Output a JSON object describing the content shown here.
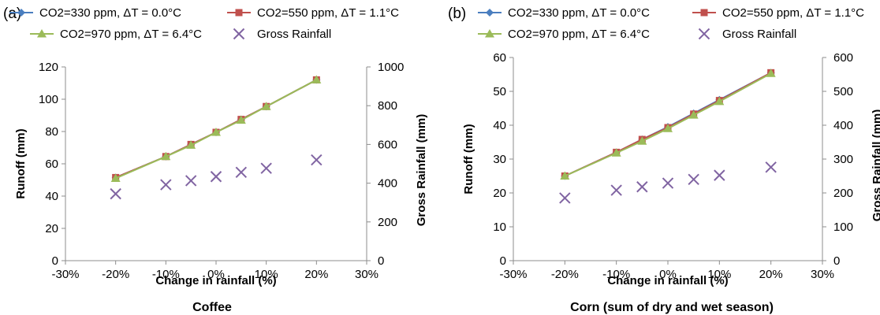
{
  "chart_data": [
    {
      "type": "line",
      "panel_label": "(a)",
      "caption": "Coffee",
      "xlabel": "Change in rainfall (%)",
      "ylabel": "Runoff (mm)",
      "y2label": "Gross Rainfall (mm)",
      "xlim": [
        -30,
        30
      ],
      "ylim": [
        0,
        120
      ],
      "y2lim": [
        0,
        1000
      ],
      "xticks": [
        "-30%",
        "-20%",
        "-10%",
        "0%",
        "10%",
        "20%",
        "30%"
      ],
      "yticks": [
        "0",
        "20",
        "40",
        "60",
        "80",
        "100",
        "120"
      ],
      "y2ticks": [
        "0",
        "200",
        "400",
        "600",
        "800",
        "1000"
      ],
      "x": [
        -20,
        -10,
        -5,
        0,
        5,
        10,
        20
      ],
      "series": [
        {
          "name": "CO2=330 ppm, ΔT = 0.0°C",
          "color": "#4a7ebf",
          "marker": "diamond",
          "values": [
            51.5,
            64.5,
            72,
            79.5,
            87.5,
            95.5,
            112
          ],
          "axis": "left"
        },
        {
          "name": "CO2=550 ppm, ΔT = 1.1°C",
          "color": "#c0504d",
          "marker": "square",
          "values": [
            51.5,
            64.5,
            72,
            79.5,
            87.5,
            95.5,
            112
          ],
          "axis": "left"
        },
        {
          "name": "CO2=970 ppm, ΔT = 6.4°C",
          "color": "#9bbb59",
          "marker": "triangle",
          "values": [
            51,
            64.5,
            71.5,
            79.5,
            87,
            95.5,
            112
          ],
          "axis": "left"
        },
        {
          "name": "Gross Rainfall",
          "color": "#8064a2",
          "marker": "x",
          "values": [
            345,
            392,
            413,
            434,
            456,
            477,
            520
          ],
          "axis": "right"
        }
      ]
    },
    {
      "type": "line",
      "panel_label": "(b)",
      "caption": "Corn (sum of dry and wet season)",
      "xlabel": "Change in rainfall (%)",
      "ylabel": "Runoff (mm)",
      "y2label": "Gross Rainfall (mm)",
      "xlim": [
        -30,
        30
      ],
      "ylim": [
        0,
        60
      ],
      "y2lim": [
        0,
        600
      ],
      "xticks": [
        "-30%",
        "-20%",
        "-10%",
        "0%",
        "10%",
        "20%",
        "30%"
      ],
      "yticks": [
        "0",
        "10",
        "20",
        "30",
        "40",
        "50",
        "60"
      ],
      "y2ticks": [
        "0",
        "100",
        "200",
        "300",
        "400",
        "500",
        "600"
      ],
      "x": [
        -20,
        -10,
        -5,
        0,
        5,
        10,
        20
      ],
      "series": [
        {
          "name": "CO2=330 ppm, ΔT = 0.0°C",
          "color": "#4a7ebf",
          "marker": "diamond",
          "values": [
            25,
            32,
            35.8,
            39.5,
            43.5,
            47.5,
            55.5
          ],
          "axis": "left"
        },
        {
          "name": "CO2=550 ppm, ΔT = 1.1°C",
          "color": "#c0504d",
          "marker": "square",
          "values": [
            25,
            32,
            35.8,
            39.3,
            43.3,
            47.3,
            55.5
          ],
          "axis": "left"
        },
        {
          "name": "CO2=970 ppm, ΔT = 6.4°C",
          "color": "#9bbb59",
          "marker": "triangle",
          "values": [
            25,
            31.8,
            35.3,
            39,
            43,
            47,
            55.3
          ],
          "axis": "left"
        },
        {
          "name": "Gross Rainfall",
          "color": "#8064a2",
          "marker": "x",
          "values": [
            185,
            208,
            218,
            229,
            240,
            252,
            276
          ],
          "axis": "right"
        }
      ]
    }
  ]
}
